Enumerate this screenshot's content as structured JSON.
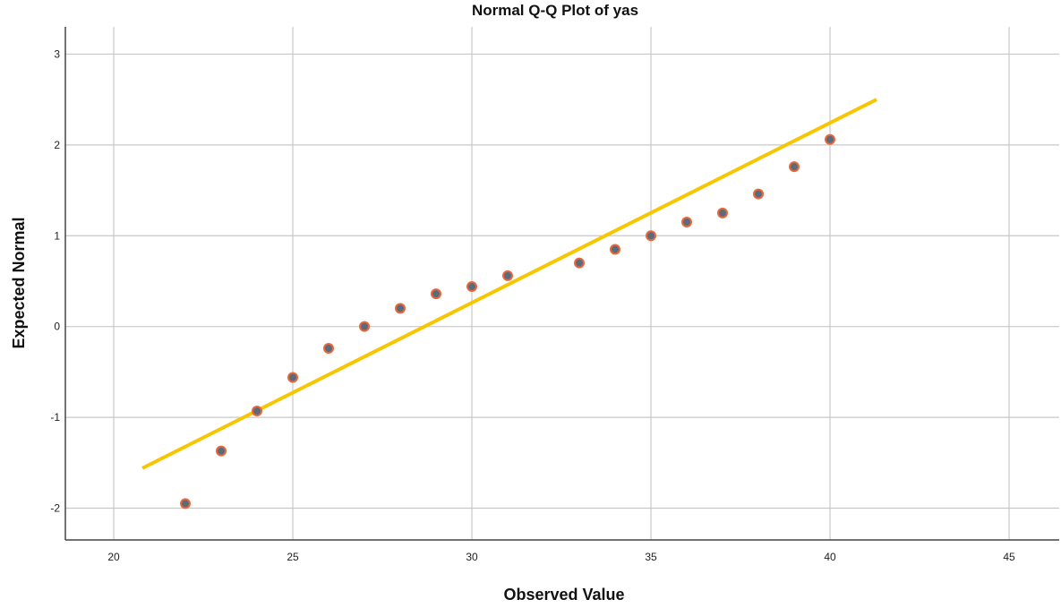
{
  "chart_data": {
    "type": "scatter",
    "title": "Normal Q-Q Plot of yas",
    "xlabel": "Observed Value",
    "ylabel": "Expected Normal",
    "xlim": [
      18.65,
      46.4
    ],
    "ylim": [
      -2.35,
      3.3
    ],
    "xticks": [
      20,
      25,
      30,
      35,
      40,
      45
    ],
    "yticks": [
      -2,
      -1,
      0,
      1,
      2,
      3
    ],
    "grid": true,
    "points": [
      {
        "x": 22,
        "y": -1.95
      },
      {
        "x": 23,
        "y": -1.37
      },
      {
        "x": 24,
        "y": -0.93
      },
      {
        "x": 25,
        "y": -0.56
      },
      {
        "x": 26,
        "y": -0.24
      },
      {
        "x": 27,
        "y": 0.0
      },
      {
        "x": 28,
        "y": 0.2
      },
      {
        "x": 29,
        "y": 0.36
      },
      {
        "x": 30,
        "y": 0.44
      },
      {
        "x": 31,
        "y": 0.56
      },
      {
        "x": 33,
        "y": 0.7
      },
      {
        "x": 34,
        "y": 0.85
      },
      {
        "x": 35,
        "y": 1.0
      },
      {
        "x": 36,
        "y": 1.15
      },
      {
        "x": 37,
        "y": 1.25
      },
      {
        "x": 38,
        "y": 1.46
      },
      {
        "x": 39,
        "y": 1.76
      },
      {
        "x": 40,
        "y": 2.06
      }
    ],
    "reference_line": {
      "x1": 20.8,
      "y1": -1.56,
      "x2": 41.3,
      "y2": 2.5
    },
    "colors": {
      "point_fill": "#5b6b7c",
      "point_edge": "#e8683a",
      "line": "#f7c600",
      "grid": "#c8c8c8",
      "axis": "#444444"
    }
  }
}
